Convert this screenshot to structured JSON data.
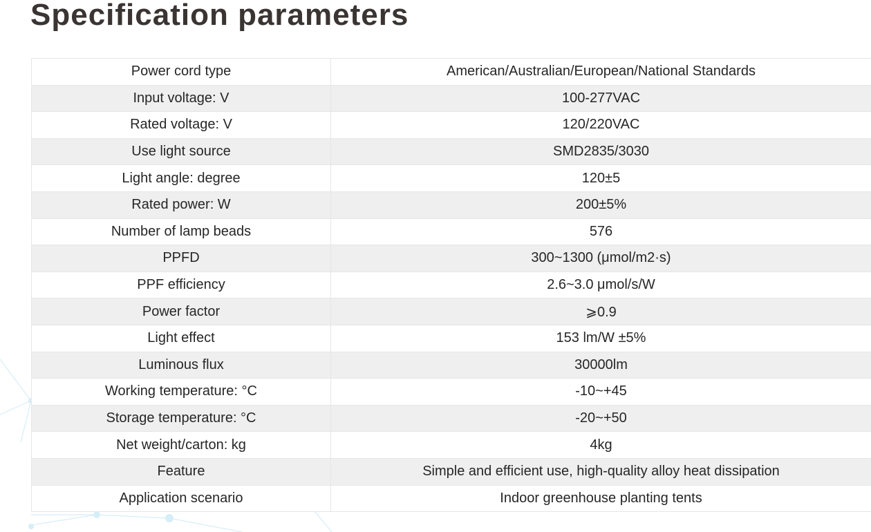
{
  "page": {
    "title": "Specification parameters"
  },
  "specs": [
    {
      "param": "Power cord type",
      "value": "American/Australian/European/National Standards"
    },
    {
      "param": "Input voltage: V",
      "value": "100-277VAC"
    },
    {
      "param": "Rated voltage: V",
      "value": "120/220VAC"
    },
    {
      "param": "Use light source",
      "value": "SMD2835/3030"
    },
    {
      "param": "Light angle: degree",
      "value": "120±5"
    },
    {
      "param": "Rated power: W",
      "value": "200±5%"
    },
    {
      "param": "Number of lamp beads",
      "value": "576"
    },
    {
      "param": "PPFD",
      "value": "300~1300 (μmol/m2·s)"
    },
    {
      "param": "PPF efficiency",
      "value": "2.6~3.0 μmol/s/W"
    },
    {
      "param": "Power factor",
      "value": "⩾0.9"
    },
    {
      "param": "Light effect",
      "value": "153 lm/W ±5%"
    },
    {
      "param": "Luminous flux",
      "value": "30000lm"
    },
    {
      "param": "Working temperature: °C",
      "value": "-10~+45"
    },
    {
      "param": "Storage temperature: °C",
      "value": "-20~+50"
    },
    {
      "param": "Net weight/carton: kg",
      "value": "4kg"
    },
    {
      "param": "Feature",
      "value": "Simple and efficient use, high-quality alloy heat dissipation"
    },
    {
      "param": "Application scenario",
      "value": "Indoor greenhouse planting tents"
    }
  ],
  "colors": {
    "title": "#3a3432",
    "row_alt": "#efefef",
    "border": "#e6e6e6",
    "network": "#cfeaf5"
  }
}
